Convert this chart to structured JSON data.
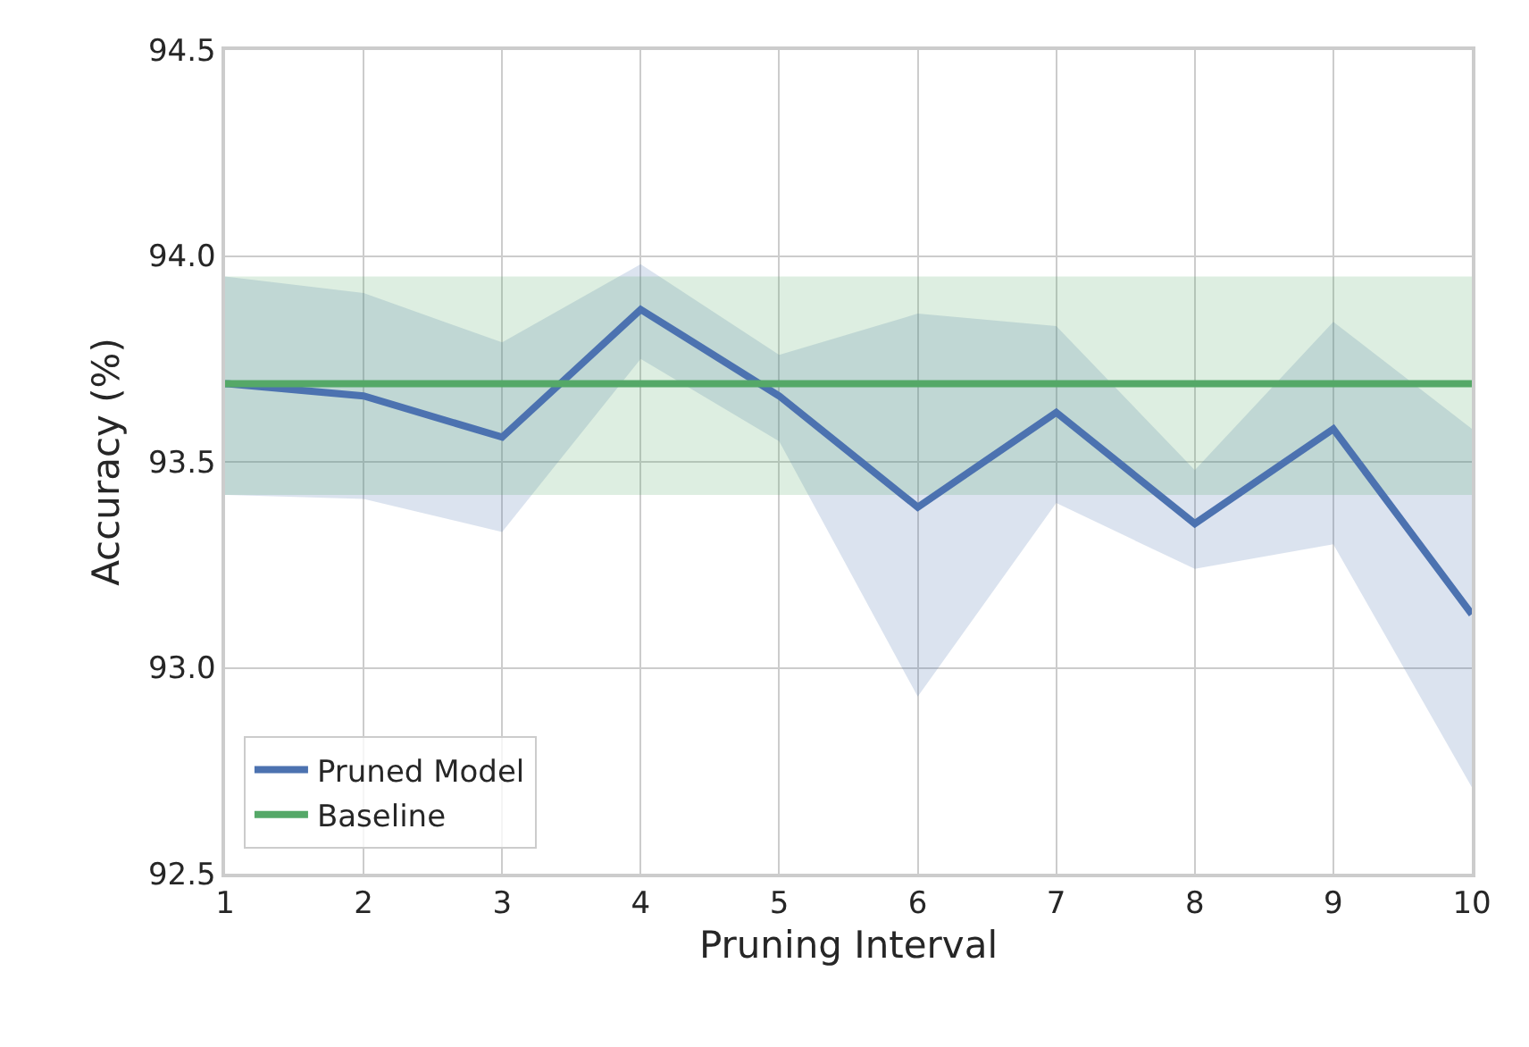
{
  "chart_data": {
    "type": "line",
    "xlabel": "Pruning Interval",
    "ylabel": "Accuracy (%)",
    "x": [
      1,
      2,
      3,
      4,
      5,
      6,
      7,
      8,
      9,
      10
    ],
    "series": [
      {
        "name": "Pruned Model",
        "color": "#4c72b0",
        "values": [
          93.69,
          93.66,
          93.56,
          93.87,
          93.66,
          93.39,
          93.62,
          93.35,
          93.58,
          93.13
        ],
        "lower": [
          93.42,
          93.41,
          93.33,
          93.75,
          93.55,
          92.93,
          93.4,
          93.24,
          93.3,
          92.71
        ],
        "upper": [
          93.95,
          93.91,
          93.79,
          93.98,
          93.76,
          93.86,
          93.83,
          93.48,
          93.84,
          93.58
        ]
      },
      {
        "name": "Baseline",
        "color": "#55a868",
        "values": [
          93.69,
          93.69,
          93.69,
          93.69,
          93.69,
          93.69,
          93.69,
          93.69,
          93.69,
          93.69
        ],
        "lower": [
          93.42,
          93.42,
          93.42,
          93.42,
          93.42,
          93.42,
          93.42,
          93.42,
          93.42,
          93.42
        ],
        "upper": [
          93.95,
          93.95,
          93.95,
          93.95,
          93.95,
          93.95,
          93.95,
          93.95,
          93.95,
          93.95
        ]
      }
    ],
    "xlim": [
      1,
      10
    ],
    "xticks": [
      1,
      2,
      3,
      4,
      5,
      6,
      7,
      8,
      9,
      10
    ],
    "ylim": [
      92.5,
      94.5
    ],
    "yticks": [
      {
        "value": 92.5,
        "label": "92.5"
      },
      {
        "value": 93.0,
        "label": "93.0"
      },
      {
        "value": 93.5,
        "label": "93.5"
      },
      {
        "value": 94.0,
        "label": "94.0"
      },
      {
        "value": 94.5,
        "label": "94.5"
      }
    ],
    "grid": true,
    "legend": "bottom left",
    "marker": "none",
    "line_style": "solid"
  }
}
